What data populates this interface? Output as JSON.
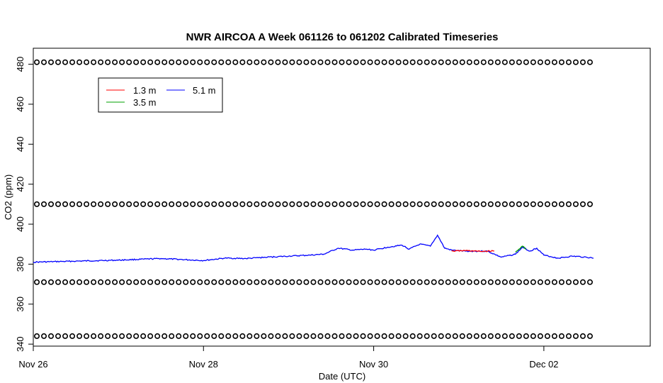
{
  "chart_data": {
    "type": "line",
    "title": "NWR AIRCOA A  Week 061126 to 061202  Calibrated Timeseries",
    "xlabel": "Date (UTC)",
    "ylabel": "CO2 (ppm)",
    "xlim": [
      "2006-11-26T00:00",
      "2006-12-03T06:00"
    ],
    "ylim": [
      339,
      488
    ],
    "x_ticks": [
      {
        "date": "2006-11-26T00:00",
        "label": "Nov 26"
      },
      {
        "date": "2006-11-28T00:00",
        "label": "Nov 28"
      },
      {
        "date": "2006-11-30T00:00",
        "label": "Nov 30"
      },
      {
        "date": "2006-12-02T00:00",
        "label": "Dec 02"
      }
    ],
    "y_ticks": [
      340,
      360,
      380,
      400,
      420,
      440,
      460,
      480
    ],
    "grid": false,
    "legend": {
      "placement": "top-left",
      "entries": [
        {
          "name": "1.3 m",
          "color": "#ff0000"
        },
        {
          "name": "3.5 m",
          "color": "#00a000"
        },
        {
          "name": "5.1 m",
          "color": "#0000ff"
        }
      ]
    },
    "series": [
      {
        "name": "5.1 m",
        "color": "#0000ff",
        "points": [
          [
            "2006-11-26T00:00",
            381.0
          ],
          [
            "2006-11-26T12:00",
            381.5
          ],
          [
            "2006-11-27T00:00",
            382.0
          ],
          [
            "2006-11-27T12:00",
            382.8
          ],
          [
            "2006-11-28T00:00",
            381.8
          ],
          [
            "2006-11-28T06:00",
            383.0
          ],
          [
            "2006-11-28T12:00",
            382.8
          ],
          [
            "2006-11-28T18:00",
            383.5
          ],
          [
            "2006-11-29T00:00",
            384.0
          ],
          [
            "2006-11-29T06:00",
            384.5
          ],
          [
            "2006-11-29T10:00",
            385.0
          ],
          [
            "2006-11-29T14:00",
            388.0
          ],
          [
            "2006-11-29T18:00",
            387.0
          ],
          [
            "2006-11-29T22:00",
            387.5
          ],
          [
            "2006-11-30T00:00",
            387.0
          ],
          [
            "2006-11-30T04:00",
            388.5
          ],
          [
            "2006-11-30T08:00",
            389.5
          ],
          [
            "2006-11-30T10:00",
            387.5
          ],
          [
            "2006-11-30T13:00",
            390.0
          ],
          [
            "2006-11-30T16:00",
            389.0
          ],
          [
            "2006-11-30T18:00",
            394.5
          ],
          [
            "2006-11-30T20:00",
            388.0
          ],
          [
            "2006-11-30T22:00",
            387.0
          ],
          [
            "2006-12-01T02:00",
            386.5
          ],
          [
            "2006-12-01T08:00",
            386.5
          ],
          [
            "2006-12-01T12:00",
            383.5
          ],
          [
            "2006-12-01T16:00",
            385.0
          ],
          [
            "2006-12-01T18:00",
            388.5
          ],
          [
            "2006-12-01T20:00",
            386.5
          ],
          [
            "2006-12-01T22:00",
            388.0
          ],
          [
            "2006-12-02T00:00",
            384.5
          ],
          [
            "2006-12-02T04:00",
            383.0
          ],
          [
            "2006-12-02T08:00",
            384.0
          ],
          [
            "2006-12-02T12:00",
            383.5
          ],
          [
            "2006-12-02T14:00",
            383.0
          ]
        ]
      },
      {
        "name": "1.3 m",
        "color": "#ff0000",
        "points": [
          [
            "2006-11-30T22:00",
            386.5
          ],
          [
            "2006-12-01T02:00",
            386.8
          ],
          [
            "2006-12-01T06:00",
            386.4
          ],
          [
            "2006-12-01T10:00",
            386.6
          ]
        ]
      },
      {
        "name": "3.5 m",
        "color": "#00a000",
        "points": [
          [
            "2006-12-01T16:00",
            386.0
          ],
          [
            "2006-12-01T18:00",
            389.0
          ],
          [
            "2006-12-01T19:00",
            387.5
          ]
        ]
      }
    ],
    "calibration_levels": [
      344,
      371,
      410,
      481
    ],
    "calibration_marker_interval_hours": 2,
    "calibration_start": "2006-11-26T01:00",
    "calibration_end": "2006-12-02T14:00"
  }
}
